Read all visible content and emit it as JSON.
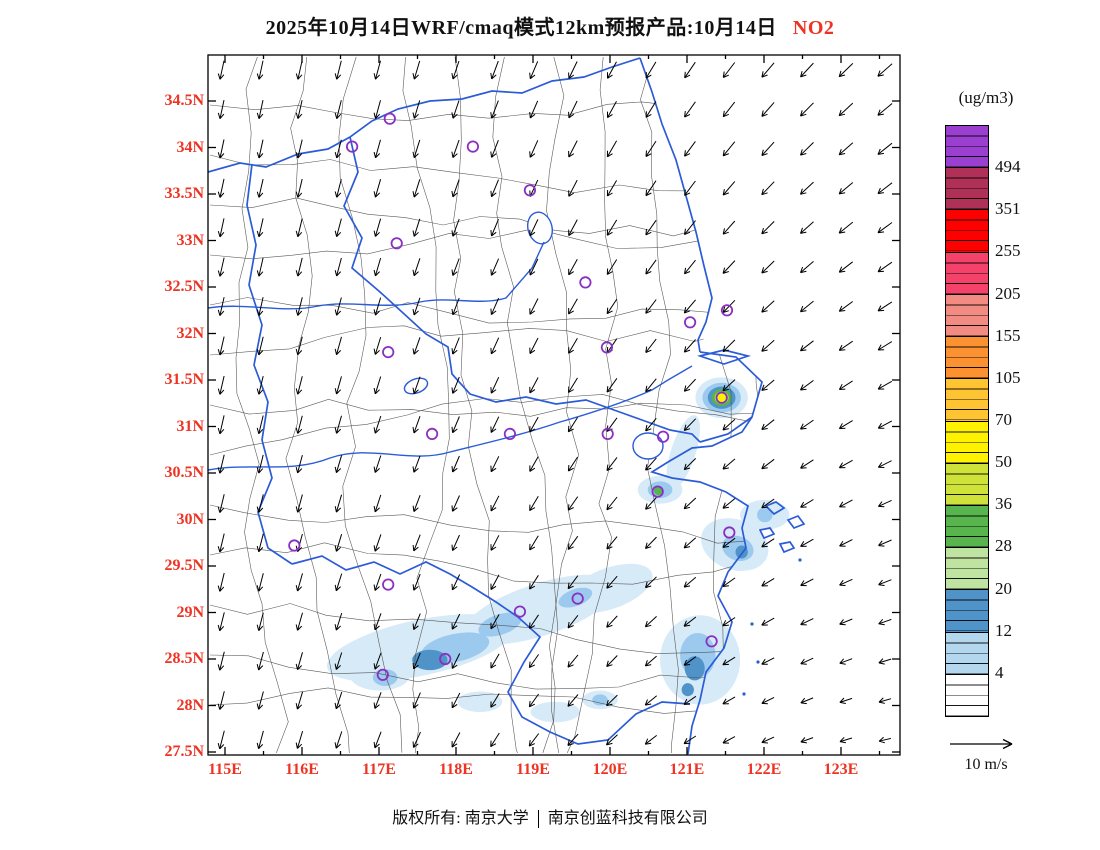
{
  "title": {
    "main": "2025年10月14日WRF/cmaq模式12km预报产品:10月14日",
    "species": "NO2"
  },
  "axes": {
    "lat_ticks": [
      "34.5N",
      "34N",
      "33.5N",
      "33N",
      "32.5N",
      "32N",
      "31.5N",
      "31N",
      "30.5N",
      "30N",
      "29.5N",
      "29N",
      "28.5N",
      "28N",
      "27.5N"
    ],
    "lon_ticks": [
      "115E",
      "116E",
      "117E",
      "118E",
      "119E",
      "120E",
      "121E",
      "122E",
      "123E"
    ]
  },
  "colorbar": {
    "units_label": "(ug/m3)",
    "boundary_labels": [
      "494",
      "351",
      "255",
      "205",
      "155",
      "105",
      "70",
      "50",
      "36",
      "28",
      "20",
      "12",
      "4"
    ],
    "segment_colors_top_to_bottom": [
      "#9b3fd1",
      "#b03158",
      "#fe0000",
      "#f4426b",
      "#f28b82",
      "#fb9130",
      "#ffc432",
      "#fff200",
      "#cfe23a",
      "#58b44c",
      "#bfe3a0",
      "#4f93c9",
      "#b4d7f0",
      "#ffffff"
    ]
  },
  "wind_legend": {
    "label": "10 m/s"
  },
  "footer": {
    "owner": "版权所有: 南京大学",
    "company": "南京创蓝科技有限公司"
  },
  "chart_data": {
    "type": "heatmap",
    "title": "2025年10月14日WRF/cmaq模式12km预报产品:10月14日 NO2",
    "variable": "NO2",
    "units": "ug/m3",
    "lon_ticks_deg": [
      115,
      116,
      117,
      118,
      119,
      120,
      121,
      122,
      123
    ],
    "lat_ticks_deg": [
      34.5,
      34,
      33.5,
      33,
      32.5,
      32,
      31.5,
      31,
      30.5,
      30,
      29.5,
      29,
      28.5,
      28,
      27.5
    ],
    "levels_ug_m3": [
      4,
      12,
      20,
      28,
      36,
      50,
      70,
      105,
      155,
      205,
      255,
      351,
      494
    ],
    "wind_reference": "10 m/s",
    "palette": {
      "l1": {
        "range": "4-12",
        "color": "#d6eaf8"
      },
      "l2": {
        "range": "12-20",
        "color": "#9cc9ee"
      },
      "l3": {
        "range": "12-20",
        "color": "#4f93c9"
      },
      "g": {
        "range": "28-36",
        "color": "#58b44c"
      },
      "yg": {
        "range": "36-50",
        "color": "#cfe23a"
      },
      "y": {
        "range": "50-70",
        "color": "#fff200"
      }
    },
    "max_feature": {
      "lon": 121.45,
      "lat": 31.31,
      "peak_range_ug_m3": "50-70"
    },
    "city_markers": [
      {
        "lon": 117.14,
        "lat": 34.31
      },
      {
        "lon": 116.65,
        "lat": 34.01
      },
      {
        "lon": 118.22,
        "lat": 34.01
      },
      {
        "lon": 118.96,
        "lat": 33.54
      },
      {
        "lon": 117.23,
        "lat": 32.97
      },
      {
        "lon": 119.68,
        "lat": 32.55
      },
      {
        "lon": 121.04,
        "lat": 32.12
      },
      {
        "lon": 121.52,
        "lat": 32.25
      },
      {
        "lon": 117.12,
        "lat": 31.8
      },
      {
        "lon": 119.96,
        "lat": 31.85
      },
      {
        "lon": 121.45,
        "lat": 31.31
      },
      {
        "lon": 117.69,
        "lat": 30.92
      },
      {
        "lon": 118.7,
        "lat": 30.92
      },
      {
        "lon": 119.97,
        "lat": 30.92
      },
      {
        "lon": 120.69,
        "lat": 30.89
      },
      {
        "lon": 120.62,
        "lat": 30.3
      },
      {
        "lon": 115.9,
        "lat": 29.72
      },
      {
        "lon": 117.12,
        "lat": 29.3
      },
      {
        "lon": 119.58,
        "lat": 29.15
      },
      {
        "lon": 118.83,
        "lat": 29.01
      },
      {
        "lon": 121.55,
        "lat": 29.86
      },
      {
        "lon": 117.86,
        "lat": 28.5
      },
      {
        "lon": 117.05,
        "lat": 28.33
      },
      {
        "lon": 121.32,
        "lat": 28.69
      }
    ],
    "pollution_patches": [
      {
        "lon": 117.53,
        "lat": 28.62,
        "rx": 1.23,
        "ry": 0.3,
        "rot": -12,
        "key": "l1"
      },
      {
        "lon": 119.09,
        "lat": 29.03,
        "rx": 1.04,
        "ry": 0.28,
        "rot": -18,
        "key": "l1"
      },
      {
        "lon": 120.0,
        "lat": 29.26,
        "rx": 0.58,
        "ry": 0.22,
        "rot": -20,
        "key": "l1"
      },
      {
        "lon": 117.01,
        "lat": 28.33,
        "rx": 0.39,
        "ry": 0.17,
        "rot": 0,
        "key": "l1"
      },
      {
        "lon": 118.31,
        "lat": 28.04,
        "rx": 0.29,
        "ry": 0.11,
        "rot": 0,
        "key": "l1"
      },
      {
        "lon": 119.29,
        "lat": 27.93,
        "rx": 0.32,
        "ry": 0.11,
        "rot": 0,
        "key": "l1"
      },
      {
        "lon": 119.87,
        "lat": 28.06,
        "rx": 0.23,
        "ry": 0.1,
        "rot": 0,
        "key": "l1"
      },
      {
        "lon": 121.17,
        "lat": 28.49,
        "rx": 0.52,
        "ry": 0.48,
        "rot": 0,
        "key": "l1"
      },
      {
        "lon": 121.62,
        "lat": 29.73,
        "rx": 0.45,
        "ry": 0.27,
        "rot": 20,
        "key": "l1"
      },
      {
        "lon": 122.01,
        "lat": 30.05,
        "rx": 0.32,
        "ry": 0.16,
        "rot": 0,
        "key": "l1"
      },
      {
        "lon": 120.65,
        "lat": 30.32,
        "rx": 0.29,
        "ry": 0.15,
        "rot": 0,
        "key": "l1"
      },
      {
        "lon": 120.95,
        "lat": 30.72,
        "rx": 0.16,
        "ry": 0.42,
        "rot": 18,
        "key": "l1"
      },
      {
        "lon": 121.45,
        "lat": 31.31,
        "rx": 0.34,
        "ry": 0.22,
        "rot": 0,
        "key": "l1"
      },
      {
        "lon": 117.99,
        "lat": 28.62,
        "rx": 0.45,
        "ry": 0.15,
        "rot": -12,
        "key": "l2"
      },
      {
        "lon": 118.57,
        "lat": 28.87,
        "rx": 0.29,
        "ry": 0.11,
        "rot": -18,
        "key": "l2"
      },
      {
        "lon": 119.55,
        "lat": 29.16,
        "rx": 0.23,
        "ry": 0.09,
        "rot": -20,
        "key": "l2"
      },
      {
        "lon": 117.08,
        "lat": 28.3,
        "rx": 0.16,
        "ry": 0.09,
        "rot": 0,
        "key": "l2"
      },
      {
        "lon": 119.87,
        "lat": 28.06,
        "rx": 0.1,
        "ry": 0.06,
        "rot": 0,
        "key": "l2"
      },
      {
        "lon": 121.14,
        "lat": 28.54,
        "rx": 0.23,
        "ry": 0.24,
        "rot": 0,
        "key": "l2"
      },
      {
        "lon": 121.66,
        "lat": 29.69,
        "rx": 0.21,
        "ry": 0.13,
        "rot": 20,
        "key": "l2"
      },
      {
        "lon": 122.01,
        "lat": 30.05,
        "rx": 0.1,
        "ry": 0.08,
        "rot": 0,
        "key": "l2"
      },
      {
        "lon": 120.65,
        "lat": 30.32,
        "rx": 0.16,
        "ry": 0.09,
        "rot": 0,
        "key": "l2"
      },
      {
        "lon": 121.45,
        "lat": 31.31,
        "rx": 0.25,
        "ry": 0.16,
        "rot": 0,
        "key": "l2"
      },
      {
        "lon": 117.66,
        "lat": 28.49,
        "rx": 0.23,
        "ry": 0.11,
        "rot": 0,
        "key": "l3"
      },
      {
        "lon": 121.1,
        "lat": 28.4,
        "rx": 0.13,
        "ry": 0.13,
        "rot": 0,
        "key": "l3"
      },
      {
        "lon": 121.01,
        "lat": 28.17,
        "rx": 0.08,
        "ry": 0.07,
        "rot": 0,
        "key": "l3"
      },
      {
        "lon": 121.71,
        "lat": 29.65,
        "rx": 0.08,
        "ry": 0.07,
        "rot": 0,
        "key": "l3"
      },
      {
        "lon": 121.45,
        "lat": 31.31,
        "rx": 0.18,
        "ry": 0.12,
        "rot": 0,
        "key": "l3"
      },
      {
        "lon": 120.63,
        "lat": 30.31,
        "rx": 0.06,
        "ry": 0.05,
        "rot": 0,
        "key": "g"
      },
      {
        "lon": 121.45,
        "lat": 31.31,
        "rx": 0.13,
        "ry": 0.09,
        "rot": 0,
        "key": "g"
      },
      {
        "lon": 121.45,
        "lat": 31.31,
        "rx": 0.09,
        "ry": 0.065,
        "rot": 0,
        "key": "yg"
      },
      {
        "lon": 121.45,
        "lat": 31.31,
        "rx": 0.055,
        "ry": 0.045,
        "rot": 0,
        "key": "y"
      }
    ]
  }
}
